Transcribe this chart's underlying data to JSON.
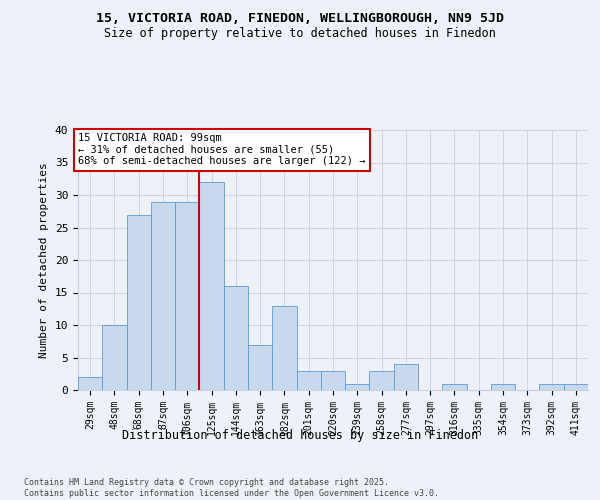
{
  "title1": "15, VICTORIA ROAD, FINEDON, WELLINGBOROUGH, NN9 5JD",
  "title2": "Size of property relative to detached houses in Finedon",
  "xlabel": "Distribution of detached houses by size in Finedon",
  "ylabel": "Number of detached properties",
  "categories": [
    "29sqm",
    "48sqm",
    "68sqm",
    "87sqm",
    "106sqm",
    "125sqm",
    "144sqm",
    "163sqm",
    "182sqm",
    "201sqm",
    "220sqm",
    "239sqm",
    "258sqm",
    "277sqm",
    "297sqm",
    "316sqm",
    "335sqm",
    "354sqm",
    "373sqm",
    "392sqm",
    "411sqm"
  ],
  "values": [
    2,
    10,
    27,
    29,
    29,
    32,
    16,
    7,
    13,
    3,
    3,
    1,
    3,
    4,
    0,
    1,
    0,
    1,
    0,
    1,
    1
  ],
  "bar_color": "#c8d9ed",
  "bar_edge_color": "#5b9bd5",
  "bar_width": 1.0,
  "property_line_x": 4.5,
  "annotation_line1": "15 VICTORIA ROAD: 99sqm",
  "annotation_line2": "← 31% of detached houses are smaller (55)",
  "annotation_line3": "68% of semi-detached houses are larger (122) →",
  "annotation_box_color": "#ffffff",
  "annotation_box_edge_color": "#cc0000",
  "vline_color": "#cc0000",
  "grid_color": "#c8d0dc",
  "background_color": "#eef2f8",
  "ylim": [
    0,
    40
  ],
  "yticks": [
    0,
    5,
    10,
    15,
    20,
    25,
    30,
    35,
    40
  ],
  "footer_line1": "Contains HM Land Registry data © Crown copyright and database right 2025.",
  "footer_line2": "Contains public sector information licensed under the Open Government Licence v3.0."
}
